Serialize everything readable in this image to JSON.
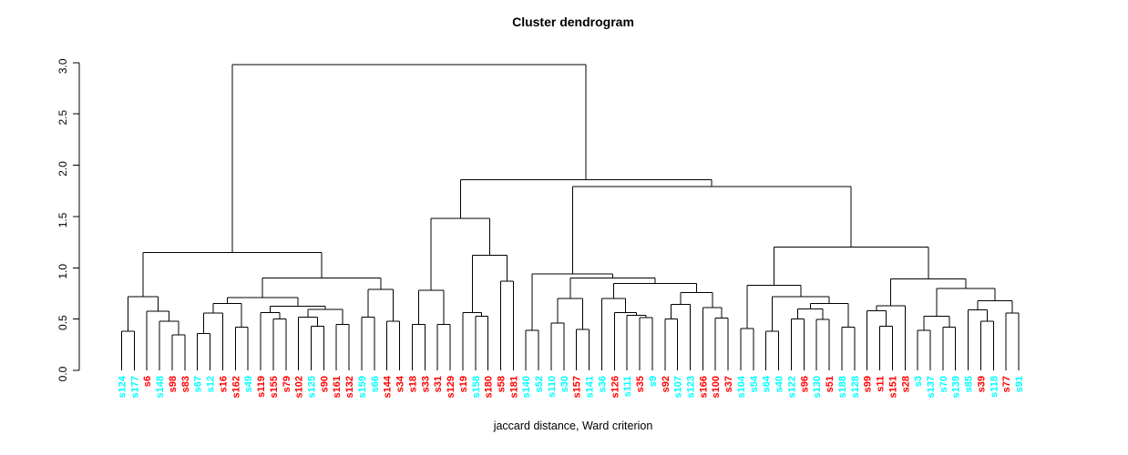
{
  "title": "Cluster dendrogram",
  "footer": "jaccard distance, Ward criterion",
  "colors": {
    "line": "#000000",
    "cluster_cyan": "#00ffff",
    "cluster_red": "#ff0000"
  },
  "chart_data": {
    "type": "dendrogram",
    "title": "Cluster dendrogram",
    "xlabel": "jaccard distance, Ward criterion",
    "ylabel": "",
    "ylim": [
      0,
      3
    ],
    "yticks": [
      0,
      0.5,
      1,
      1.5,
      2,
      2.5,
      3
    ],
    "legend": "none",
    "grid": false,
    "color_map": {
      "c": "#00ffff",
      "r": "#ff0000"
    },
    "leaves": [
      [
        "s124",
        "c"
      ],
      [
        "s177",
        "c"
      ],
      [
        "s6",
        "r"
      ],
      [
        "s148",
        "c"
      ],
      [
        "s98",
        "r"
      ],
      [
        "s83",
        "r"
      ],
      [
        "s67",
        "c"
      ],
      [
        "s12",
        "c"
      ],
      [
        "s16",
        "r"
      ],
      [
        "s162",
        "r"
      ],
      [
        "s49",
        "c"
      ],
      [
        "s119",
        "r"
      ],
      [
        "s155",
        "r"
      ],
      [
        "s79",
        "r"
      ],
      [
        "s102",
        "r"
      ],
      [
        "s125",
        "c"
      ],
      [
        "s90",
        "r"
      ],
      [
        "s161",
        "r"
      ],
      [
        "s132",
        "r"
      ],
      [
        "s159",
        "c"
      ],
      [
        "s66",
        "c"
      ],
      [
        "s144",
        "r"
      ],
      [
        "s34",
        "r"
      ],
      [
        "s18",
        "r"
      ],
      [
        "s33",
        "r"
      ],
      [
        "s31",
        "r"
      ],
      [
        "s129",
        "r"
      ],
      [
        "s19",
        "r"
      ],
      [
        "s158",
        "c"
      ],
      [
        "s180",
        "r"
      ],
      [
        "s58",
        "r"
      ],
      [
        "s181",
        "r"
      ],
      [
        "s140",
        "c"
      ],
      [
        "s52",
        "c"
      ],
      [
        "s110",
        "c"
      ],
      [
        "s30",
        "c"
      ],
      [
        "s157",
        "r"
      ],
      [
        "s141",
        "c"
      ],
      [
        "s36",
        "c"
      ],
      [
        "s126",
        "r"
      ],
      [
        "s111",
        "c"
      ],
      [
        "s35",
        "r"
      ],
      [
        "s9",
        "c"
      ],
      [
        "s92",
        "r"
      ],
      [
        "s107",
        "c"
      ],
      [
        "s123",
        "c"
      ],
      [
        "s166",
        "r"
      ],
      [
        "s100",
        "r"
      ],
      [
        "s37",
        "r"
      ],
      [
        "s104",
        "c"
      ],
      [
        "s54",
        "c"
      ],
      [
        "s64",
        "c"
      ],
      [
        "s40",
        "c"
      ],
      [
        "s122",
        "c"
      ],
      [
        "s96",
        "r"
      ],
      [
        "s130",
        "c"
      ],
      [
        "s51",
        "r"
      ],
      [
        "s188",
        "c"
      ],
      [
        "s128",
        "c"
      ],
      [
        "s99",
        "r"
      ],
      [
        "s11",
        "r"
      ],
      [
        "s151",
        "r"
      ],
      [
        "s28",
        "r"
      ],
      [
        "s3",
        "c"
      ],
      [
        "s137",
        "c"
      ],
      [
        "s70",
        "c"
      ],
      [
        "s139",
        "c"
      ],
      [
        "s85",
        "c"
      ],
      [
        "s39",
        "r"
      ],
      [
        "s118",
        "c"
      ],
      [
        "s77",
        "r"
      ],
      [
        "s91",
        "c"
      ]
    ],
    "tree": [
      2.98,
      [
        1.15,
        [
          0.72,
          [
            0.38,
            "s124",
            "s177"
          ],
          [
            0.575,
            "s6",
            [
              0.48,
              "s148",
              [
                0.345,
                "s98",
                "s83"
              ]
            ]
          ]
        ],
        [
          0.9,
          [
            0.71,
            [
              0.65,
              [
                0.56,
                [
                  0.36,
                  "s67",
                  "s12"
                ],
                "s16"
              ],
              [
                0.42,
                "s162",
                "s49"
              ]
            ],
            [
              0.625,
              [
                0.565,
                "s119",
                [
                  0.5,
                  "s155",
                  "s79"
                ]
              ],
              [
                0.595,
                [
                  0.52,
                  "s102",
                  [
                    0.43,
                    "s125",
                    "s90"
                  ]
                ],
                [
                  0.45,
                  "s161",
                  "s132"
                ]
              ]
            ]
          ],
          [
            0.79,
            [
              0.52,
              "s159",
              "s66"
            ],
            [
              0.48,
              "s144",
              "s34"
            ]
          ]
        ]
      ],
      [
        1.86,
        [
          1.48,
          [
            0.78,
            [
              0.45,
              "s18",
              "s33"
            ],
            [
              0.45,
              "s31",
              "s129"
            ]
          ],
          [
            1.12,
            [
              0.565,
              "s19",
              [
                0.53,
                "s158",
                "s180"
              ]
            ],
            [
              0.87,
              "s58",
              "s181"
            ]
          ]
        ],
        [
          1.79,
          [
            0.94,
            [
              0.39,
              "s140",
              "s52"
            ],
            [
              0.9,
              [
                0.7,
                [
                  0.46,
                  "s110",
                  "s30"
                ],
                [
                  0.4,
                  "s157",
                  "s141"
                ]
              ],
              [
                0.845,
                [
                  0.7,
                  "s36",
                  [
                    0.565,
                    "s126",
                    [
                      0.535,
                      "s111",
                      [
                        0.515,
                        "s35",
                        "s9"
                      ]
                    ]
                  ]
                ],
                [
                  0.76,
                  [
                    0.645,
                    [
                      0.5,
                      "s92",
                      "s107"
                    ],
                    "s123"
                  ],
                  [
                    0.61,
                    "s166",
                    [
                      0.51,
                      "s100",
                      "s37"
                    ]
                  ]
                ]
              ]
            ]
          ],
          [
            1.2,
            [
              0.83,
              [
                0.41,
                "s104",
                "s54"
              ],
              [
                0.72,
                [
                  0.38,
                  "s64",
                  "s40"
                ],
                [
                  0.65,
                  [
                    0.6,
                    [
                      0.5,
                      "s122",
                      "s96"
                    ],
                    [
                      0.495,
                      "s130",
                      "s51"
                    ]
                  ],
                  [
                    0.42,
                    "s188",
                    "s128"
                  ]
                ]
              ]
            ],
            [
              0.89,
              [
                0.63,
                [
                  0.58,
                  "s99",
                  [
                    0.43,
                    "s11",
                    "s151"
                  ]
                ],
                "s28"
              ],
              [
                0.8,
                [
                  0.53,
                  [
                    0.39,
                    "s3",
                    "s137"
                  ],
                  [
                    0.42,
                    "s70",
                    "s139"
                  ]
                ],
                [
                  0.68,
                  [
                    0.59,
                    "s85",
                    [
                      0.48,
                      "s39",
                      "s118"
                    ]
                  ],
                  [
                    0.56,
                    "s77",
                    "s91"
                  ]
                ]
              ]
            ]
          ]
        ]
      ]
    ]
  }
}
